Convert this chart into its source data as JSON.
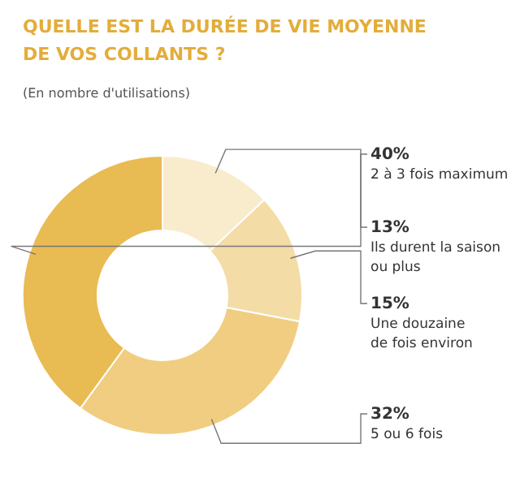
{
  "chart_data": {
    "type": "donut",
    "title": "QUELLE EST LA DURÉE DE VIE MOYENNE\nDE VOS COLLANTS ?",
    "subtitle": "(En nombre d'utilisations)",
    "categories": [
      "Ils durent la saison\nou plus",
      "Une douzaine\nde fois environ",
      "5 ou 6 fois",
      "2 à 3 fois maximum"
    ],
    "values": [
      13,
      15,
      32,
      40
    ],
    "colors": [
      "#f8eccd",
      "#f4dca6",
      "#f0cd80",
      "#e9bb53"
    ],
    "value_labels": [
      "13%",
      "15%",
      "32%",
      "40%"
    ]
  }
}
